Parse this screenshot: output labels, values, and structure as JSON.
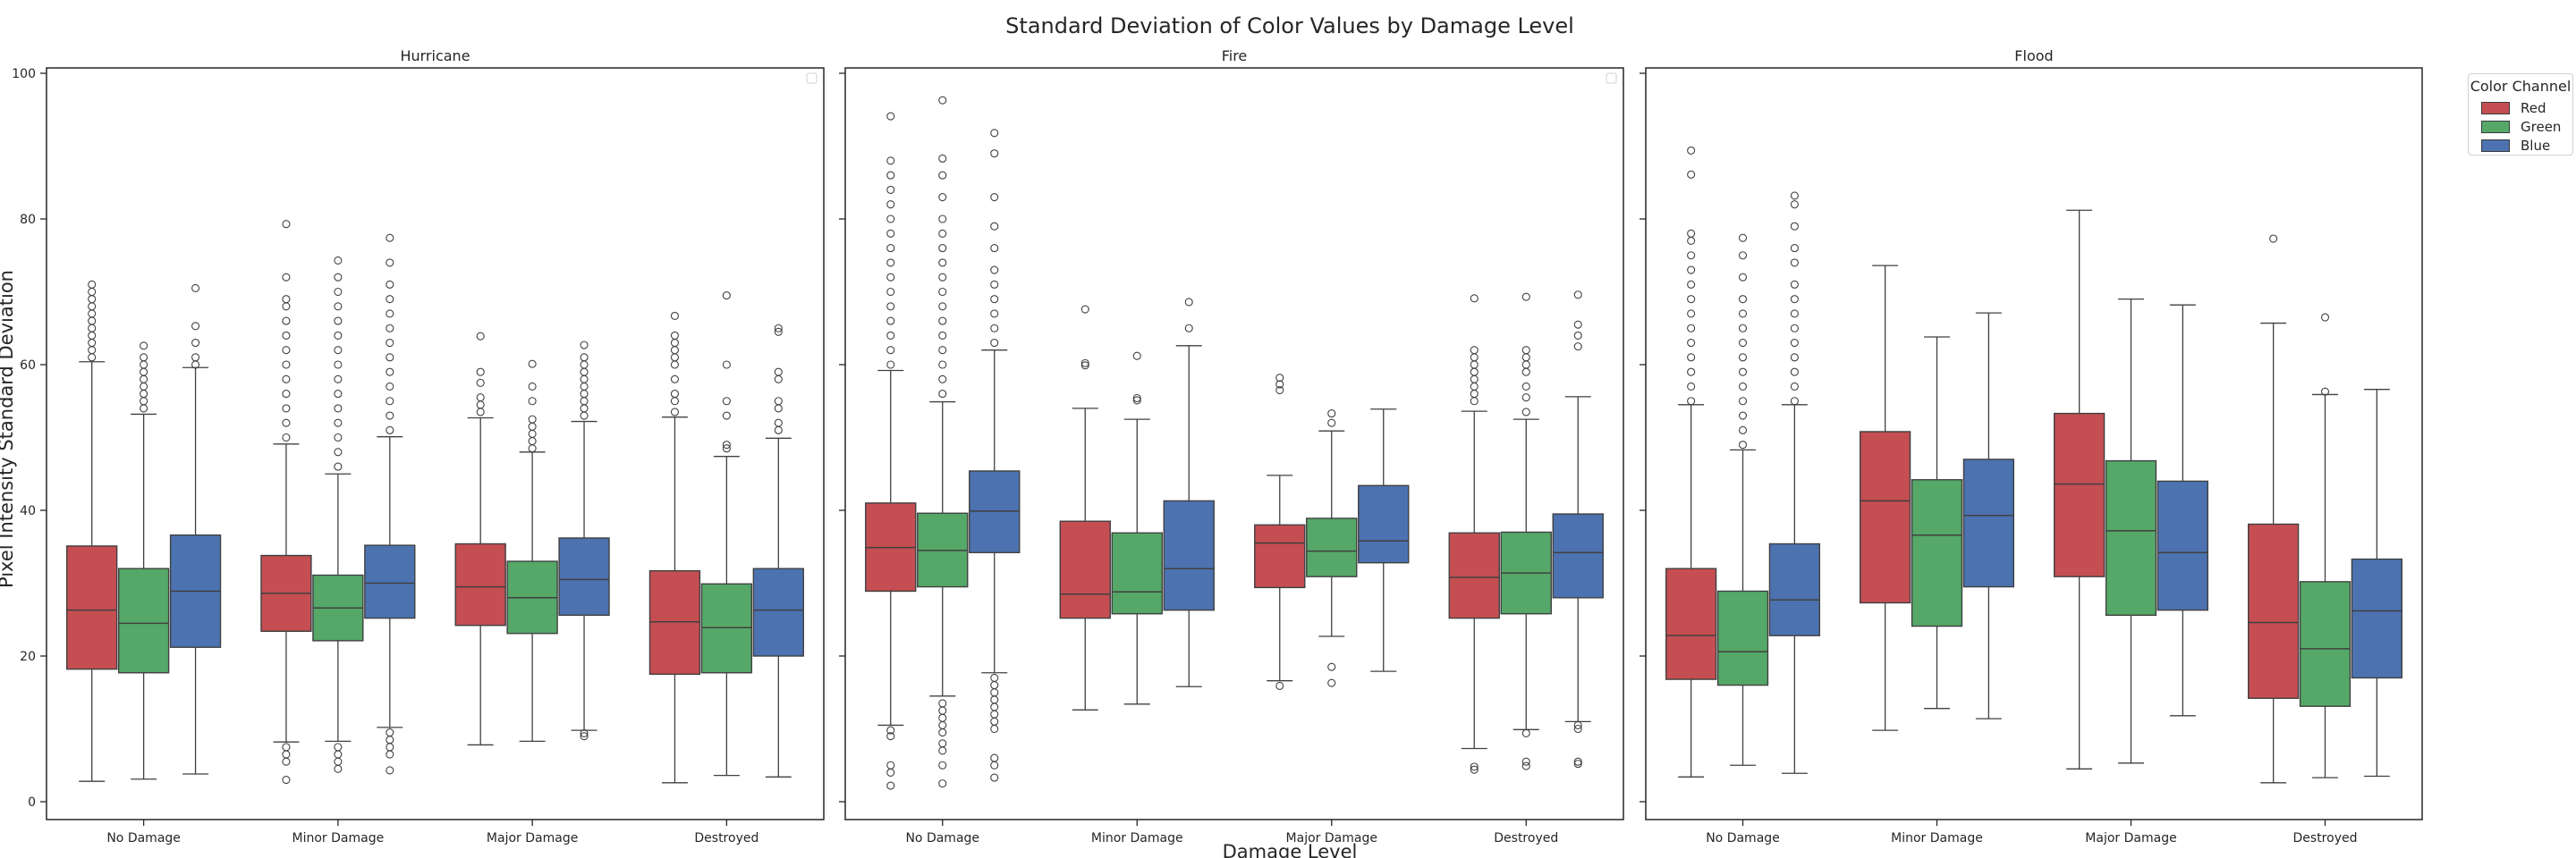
{
  "chart_data": {
    "type": "box",
    "title": "Standard Deviation of Color Values by Damage Level",
    "xlabel": "Damage Level",
    "ylabel": "Pixel Intensity Standard Deviation",
    "ylim": [
      -2,
      101
    ],
    "yticks": [
      0,
      20,
      40,
      60,
      80,
      100
    ],
    "categories": [
      "No Damage",
      "Minor Damage",
      "Major Damage",
      "Destroyed"
    ],
    "colors": {
      "Red": "#c44e52",
      "Green": "#55a868",
      "Blue": "#4c72b0"
    },
    "legend": {
      "title": "Color Channel",
      "entries": [
        "Red",
        "Green",
        "Blue"
      ],
      "placement": "outside-right"
    },
    "grid": false,
    "panels": [
      {
        "title": "Hurricane",
        "groups": [
          {
            "category": "No Damage",
            "boxes": [
              {
                "series": "Red",
                "min": 2.8,
                "q1": 18.2,
                "median": 26.3,
                "q3": 35.1,
                "max": 60.4,
                "outliers_high": [
                  61,
                  62,
                  63,
                  64,
                  65,
                  66,
                  67,
                  68,
                  69,
                  70,
                  71
                ],
                "outliers_low": []
              },
              {
                "series": "Green",
                "min": 3.1,
                "q1": 17.7,
                "median": 24.5,
                "q3": 32.0,
                "max": 53.2,
                "outliers_high": [
                  54,
                  55,
                  56,
                  57,
                  58,
                  59,
                  60,
                  61,
                  62.6
                ],
                "outliers_low": []
              },
              {
                "series": "Blue",
                "min": 3.8,
                "q1": 21.2,
                "median": 28.9,
                "q3": 36.6,
                "max": 59.6,
                "outliers_high": [
                  60,
                  61,
                  63,
                  65.3,
                  70.5
                ],
                "outliers_low": []
              }
            ]
          },
          {
            "category": "Minor Damage",
            "boxes": [
              {
                "series": "Red",
                "min": 8.2,
                "q1": 23.4,
                "median": 28.6,
                "q3": 33.8,
                "max": 49.1,
                "outliers_high": [
                  50,
                  52,
                  54,
                  56,
                  58,
                  60,
                  62,
                  64,
                  66,
                  68,
                  69,
                  72,
                  79.3
                ],
                "outliers_low": [
                  7.5,
                  6.5,
                  5.5,
                  3.0
                ]
              },
              {
                "series": "Green",
                "min": 8.3,
                "q1": 22.1,
                "median": 26.6,
                "q3": 31.1,
                "max": 45.0,
                "outliers_high": [
                  46,
                  48,
                  50,
                  52,
                  54,
                  56,
                  58,
                  60,
                  62,
                  64,
                  66,
                  68,
                  70,
                  72,
                  74.3
                ],
                "outliers_low": [
                  7.5,
                  6.5,
                  5.5,
                  4.5
                ]
              },
              {
                "series": "Blue",
                "min": 10.2,
                "q1": 25.2,
                "median": 30.0,
                "q3": 35.2,
                "max": 50.1,
                "outliers_high": [
                  51,
                  53,
                  55,
                  57,
                  59,
                  61,
                  63,
                  65,
                  67,
                  69,
                  71,
                  74,
                  77.4
                ],
                "outliers_low": [
                  9.5,
                  8.5,
                  7.5,
                  6.5,
                  4.3
                ]
              }
            ]
          },
          {
            "category": "Major Damage",
            "boxes": [
              {
                "series": "Red",
                "min": 7.8,
                "q1": 24.2,
                "median": 29.5,
                "q3": 35.4,
                "max": 52.7,
                "outliers_high": [
                  53.5,
                  54.5,
                  55.5,
                  57.5,
                  59,
                  63.9
                ],
                "outliers_low": []
              },
              {
                "series": "Green",
                "min": 8.3,
                "q1": 23.1,
                "median": 28.0,
                "q3": 33.0,
                "max": 48.0,
                "outliers_high": [
                  48.5,
                  49.5,
                  50.5,
                  51.5,
                  52.5,
                  55,
                  57,
                  60.1
                ],
                "outliers_low": []
              },
              {
                "series": "Blue",
                "min": 9.8,
                "q1": 25.6,
                "median": 30.5,
                "q3": 36.2,
                "max": 52.2,
                "outliers_high": [
                  53,
                  54,
                  55,
                  56,
                  57,
                  58,
                  59,
                  60,
                  61,
                  62.7
                ],
                "outliers_low": [
                  9.4,
                  9.0
                ]
              }
            ]
          },
          {
            "category": "Destroyed",
            "boxes": [
              {
                "series": "Red",
                "min": 2.6,
                "q1": 17.5,
                "median": 24.7,
                "q3": 31.7,
                "max": 52.8,
                "outliers_high": [
                  53.5,
                  55,
                  56,
                  58,
                  60,
                  61,
                  62,
                  63,
                  64,
                  66.7
                ],
                "outliers_low": []
              },
              {
                "series": "Green",
                "min": 3.6,
                "q1": 17.7,
                "median": 23.9,
                "q3": 29.9,
                "max": 47.4,
                "outliers_high": [
                  48.5,
                  49,
                  53,
                  55,
                  60,
                  69.5
                ],
                "outliers_low": []
              },
              {
                "series": "Blue",
                "min": 3.4,
                "q1": 20.0,
                "median": 26.3,
                "q3": 32.0,
                "max": 49.9,
                "outliers_high": [
                  51,
                  52,
                  54,
                  55,
                  58,
                  59,
                  64.5,
                  65
                ],
                "outliers_low": []
              }
            ]
          }
        ]
      },
      {
        "title": "Fire",
        "groups": [
          {
            "category": "No Damage",
            "boxes": [
              {
                "series": "Red",
                "min": 10.5,
                "q1": 28.9,
                "median": 34.9,
                "q3": 41.0,
                "max": 59.2,
                "outliers_high": [
                  60,
                  62,
                  64,
                  66,
                  68,
                  70,
                  72,
                  74,
                  76,
                  78,
                  80,
                  82,
                  84,
                  86,
                  88,
                  94.1
                ],
                "outliers_low": [
                  9.8,
                  9.0,
                  5.0,
                  4.0,
                  2.2
                ]
              },
              {
                "series": "Green",
                "min": 14.5,
                "q1": 29.5,
                "median": 34.5,
                "q3": 39.6,
                "max": 54.9,
                "outliers_high": [
                  56,
                  58,
                  60,
                  62,
                  64,
                  66,
                  68,
                  70,
                  72,
                  74,
                  76,
                  78,
                  80,
                  83,
                  86,
                  88.3,
                  96.3
                ],
                "outliers_low": [
                  13.5,
                  12.5,
                  11.5,
                  10.5,
                  9.5,
                  8.0,
                  7.0,
                  5.0,
                  2.5
                ]
              },
              {
                "series": "Blue",
                "min": 17.7,
                "q1": 34.2,
                "median": 39.9,
                "q3": 45.4,
                "max": 62.0,
                "outliers_high": [
                  63,
                  65,
                  67,
                  69,
                  71,
                  73,
                  76,
                  79,
                  83,
                  89,
                  91.8
                ],
                "outliers_low": [
                  17,
                  16,
                  15,
                  14,
                  13,
                  12,
                  11,
                  10,
                  6,
                  5,
                  3.3
                ]
              }
            ]
          },
          {
            "category": "Minor Damage",
            "boxes": [
              {
                "series": "Red",
                "min": 12.6,
                "q1": 25.2,
                "median": 28.5,
                "q3": 38.5,
                "max": 54.0,
                "outliers_high": [
                  59.9,
                  60.2,
                  67.6
                ],
                "outliers_low": []
              },
              {
                "series": "Green",
                "min": 13.4,
                "q1": 25.8,
                "median": 28.8,
                "q3": 36.9,
                "max": 52.5,
                "outliers_high": [
                  55.1,
                  55.4,
                  61.2
                ],
                "outliers_low": []
              },
              {
                "series": "Blue",
                "min": 15.8,
                "q1": 26.3,
                "median": 32.0,
                "q3": 41.3,
                "max": 62.6,
                "outliers_high": [
                  65.0,
                  68.6
                ],
                "outliers_low": []
              }
            ]
          },
          {
            "category": "Major Damage",
            "boxes": [
              {
                "series": "Red",
                "min": 16.6,
                "q1": 29.4,
                "median": 35.5,
                "q3": 38.0,
                "max": 44.8,
                "outliers_high": [
                  56.5,
                  57.3,
                  58.2
                ],
                "outliers_low": [
                  15.9
                ]
              },
              {
                "series": "Green",
                "min": 22.7,
                "q1": 30.9,
                "median": 34.4,
                "q3": 38.9,
                "max": 50.9,
                "outliers_high": [
                  52.0,
                  53.3
                ],
                "outliers_low": [
                  18.5,
                  16.3
                ]
              },
              {
                "series": "Blue",
                "min": 17.9,
                "q1": 32.8,
                "median": 35.8,
                "q3": 43.4,
                "max": 53.9,
                "outliers_high": [],
                "outliers_low": []
              }
            ]
          },
          {
            "category": "Destroyed",
            "boxes": [
              {
                "series": "Red",
                "min": 7.3,
                "q1": 25.2,
                "median": 30.8,
                "q3": 36.9,
                "max": 53.6,
                "outliers_high": [
                  55,
                  56,
                  57,
                  58,
                  59,
                  60,
                  61,
                  62,
                  69.1
                ],
                "outliers_low": [
                  4.8,
                  4.4
                ]
              },
              {
                "series": "Green",
                "min": 9.9,
                "q1": 25.8,
                "median": 31.4,
                "q3": 37.0,
                "max": 52.5,
                "outliers_high": [
                  53.5,
                  55.5,
                  57,
                  59,
                  60,
                  61,
                  62,
                  69.3
                ],
                "outliers_low": [
                  9.4,
                  5.5,
                  4.9
                ]
              },
              {
                "series": "Blue",
                "min": 11.0,
                "q1": 28.0,
                "median": 34.2,
                "q3": 39.5,
                "max": 55.6,
                "outliers_high": [
                  62.5,
                  64,
                  65.5,
                  69.6
                ],
                "outliers_low": [
                  10.5,
                  10.0,
                  5.5,
                  5.2
                ]
              }
            ]
          }
        ]
      },
      {
        "title": "Flood",
        "groups": [
          {
            "category": "No Damage",
            "boxes": [
              {
                "series": "Red",
                "min": 3.4,
                "q1": 16.8,
                "median": 22.8,
                "q3": 32.0,
                "max": 54.5,
                "outliers_high": [
                  55,
                  57,
                  59,
                  61,
                  63,
                  65,
                  67,
                  69,
                  71,
                  73,
                  75,
                  77,
                  78,
                  86.1,
                  89.4
                ],
                "outliers_low": []
              },
              {
                "series": "Green",
                "min": 5.0,
                "q1": 16.0,
                "median": 20.6,
                "q3": 28.9,
                "max": 48.3,
                "outliers_high": [
                  49,
                  51,
                  53,
                  55,
                  57,
                  59,
                  61,
                  63,
                  65,
                  67,
                  69,
                  72,
                  75,
                  77.4
                ],
                "outliers_low": []
              },
              {
                "series": "Blue",
                "min": 3.9,
                "q1": 22.8,
                "median": 27.7,
                "q3": 35.4,
                "max": 54.5,
                "outliers_high": [
                  55,
                  57,
                  59,
                  61,
                  63,
                  65,
                  67,
                  69,
                  71,
                  74,
                  76,
                  79,
                  82,
                  83.2
                ],
                "outliers_low": []
              }
            ]
          },
          {
            "category": "Minor Damage",
            "boxes": [
              {
                "series": "Red",
                "min": 9.8,
                "q1": 27.3,
                "median": 41.3,
                "q3": 50.8,
                "max": 73.6,
                "outliers_high": [],
                "outliers_low": []
              },
              {
                "series": "Green",
                "min": 12.8,
                "q1": 24.1,
                "median": 36.6,
                "q3": 44.2,
                "max": 63.8,
                "outliers_high": [],
                "outliers_low": []
              },
              {
                "series": "Blue",
                "min": 11.4,
                "q1": 29.5,
                "median": 39.3,
                "q3": 47.0,
                "max": 67.1,
                "outliers_high": [],
                "outliers_low": []
              }
            ]
          },
          {
            "category": "Major Damage",
            "boxes": [
              {
                "series": "Red",
                "min": 4.5,
                "q1": 30.9,
                "median": 43.6,
                "q3": 53.3,
                "max": 81.2,
                "outliers_high": [],
                "outliers_low": []
              },
              {
                "series": "Green",
                "min": 5.3,
                "q1": 25.6,
                "median": 37.2,
                "q3": 46.8,
                "max": 69.0,
                "outliers_high": [],
                "outliers_low": []
              },
              {
                "series": "Blue",
                "min": 11.8,
                "q1": 26.3,
                "median": 34.2,
                "q3": 44.0,
                "max": 68.2,
                "outliers_high": [],
                "outliers_low": []
              }
            ]
          },
          {
            "category": "Destroyed",
            "boxes": [
              {
                "series": "Red",
                "min": 2.6,
                "q1": 14.2,
                "median": 24.6,
                "q3": 38.1,
                "max": 65.7,
                "outliers_high": [
                  77.3
                ],
                "outliers_low": []
              },
              {
                "series": "Green",
                "min": 3.3,
                "q1": 13.1,
                "median": 21.0,
                "q3": 30.2,
                "max": 55.9,
                "outliers_high": [
                  56.3,
                  66.5
                ],
                "outliers_low": []
              },
              {
                "series": "Blue",
                "min": 3.5,
                "q1": 17.0,
                "median": 26.2,
                "q3": 33.3,
                "max": 56.6,
                "outliers_high": [],
                "outliers_low": []
              }
            ]
          }
        ]
      }
    ]
  }
}
